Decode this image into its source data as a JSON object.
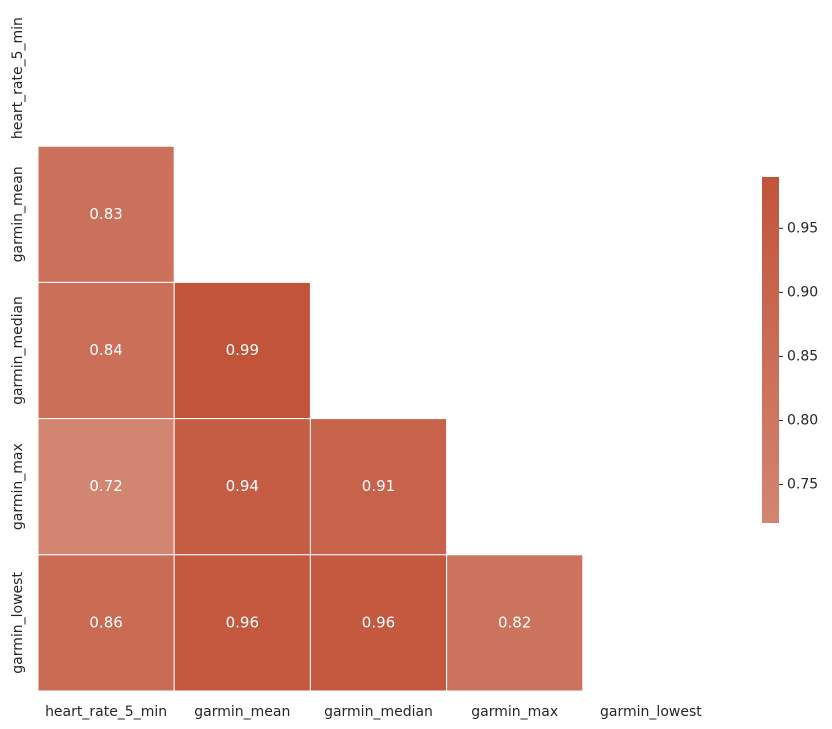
{
  "chart_data": {
    "type": "heatmap",
    "rows": [
      "heart_rate_5_min",
      "garmin_mean",
      "garmin_median",
      "garmin_max",
      "garmin_lowest"
    ],
    "columns": [
      "heart_rate_5_min",
      "garmin_mean",
      "garmin_median",
      "garmin_max",
      "garmin_lowest"
    ],
    "values": [
      [
        null,
        null,
        null,
        null,
        null
      ],
      [
        0.83,
        null,
        null,
        null,
        null
      ],
      [
        0.84,
        0.99,
        null,
        null,
        null
      ],
      [
        0.72,
        0.94,
        0.91,
        null,
        null
      ],
      [
        0.86,
        0.96,
        0.96,
        0.82,
        null
      ]
    ],
    "colormap": [
      "#d28571",
      "#c2543a"
    ],
    "clim": [
      0.72,
      0.99
    ],
    "cticks": [
      0.75,
      {
        "value": 0.9,
        "label": "0.90"
      },
      0.85,
      {
        "value": 0.8,
        "label": "0.80"
      },
      0.95
    ]
  }
}
